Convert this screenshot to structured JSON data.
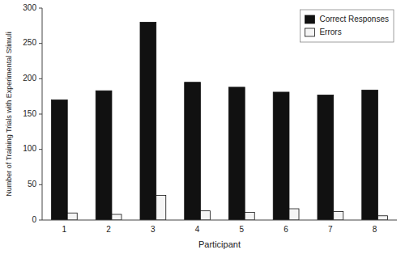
{
  "chart_data": {
    "type": "bar",
    "categories": [
      "1",
      "2",
      "3",
      "4",
      "5",
      "6",
      "7",
      "8"
    ],
    "series": [
      {
        "name": "Correct Responses",
        "color": "#111111",
        "values": [
          170,
          183,
          280,
          195,
          188,
          181,
          177,
          184
        ]
      },
      {
        "name": "Errors",
        "color": "#f5f5f5",
        "values": [
          10,
          8,
          35,
          13,
          11,
          16,
          12,
          6
        ]
      }
    ],
    "xlabel": "Participant",
    "ylabel": "Number of Training Trials with Experimental Stimuli",
    "ylim": [
      0,
      300
    ],
    "yticks": [
      0,
      50,
      100,
      150,
      200,
      250,
      300
    ],
    "grid": false,
    "legend": "upper right"
  }
}
